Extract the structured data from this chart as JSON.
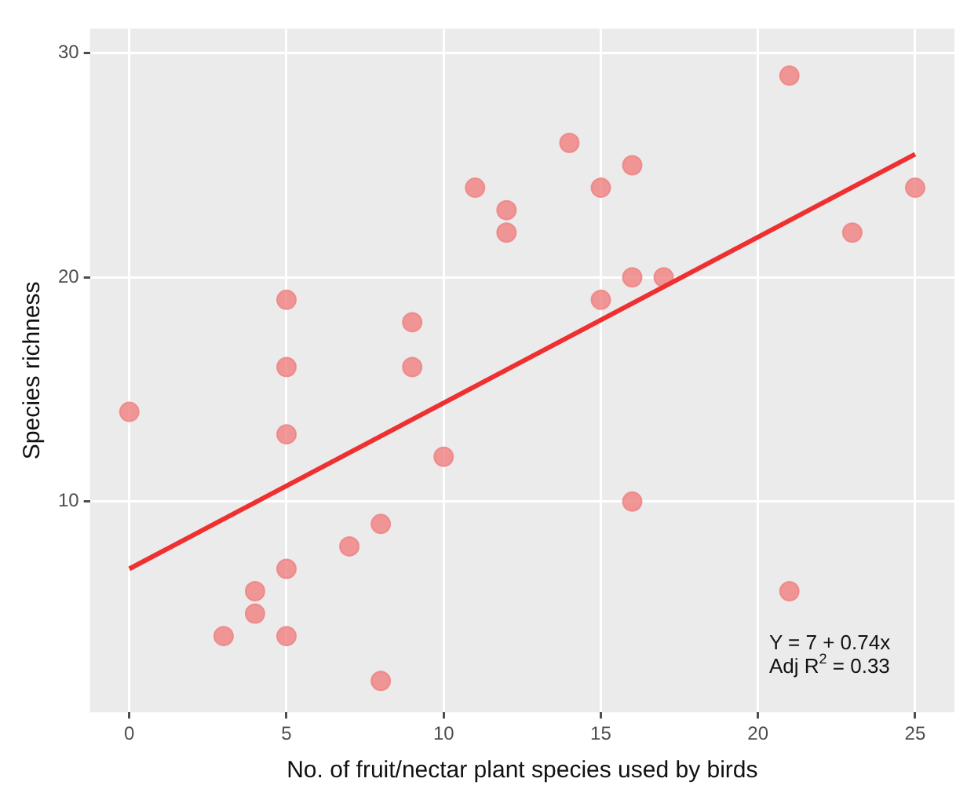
{
  "chart_data": {
    "type": "scatter",
    "xlabel": "No. of fruit/nectar plant species used by birds",
    "ylabel": "Species richness",
    "xlim": [
      -1.25,
      26.25
    ],
    "ylim": [
      0.6,
      31.1
    ],
    "xticks": [
      0,
      5,
      10,
      15,
      20,
      25
    ],
    "yticks": [
      10,
      20,
      30
    ],
    "grid": true,
    "series": [
      {
        "type": "scatter",
        "marker": "circle",
        "color": "#f08080",
        "x": [
          0,
          3,
          4,
          4,
          5,
          5,
          5,
          5,
          5,
          7,
          8,
          8,
          9,
          9,
          10,
          11,
          12,
          12,
          14,
          15,
          15,
          16,
          16,
          16,
          17,
          21,
          21,
          23,
          25
        ],
        "values": [
          14,
          4,
          6,
          5,
          4,
          7,
          13,
          16,
          19,
          8,
          9,
          2,
          18,
          16,
          12,
          24,
          23,
          22,
          26,
          24,
          19,
          25,
          20,
          10,
          20,
          29,
          6,
          22,
          24
        ]
      },
      {
        "type": "line",
        "marker": "none",
        "color": "#ee3030",
        "x": [
          0,
          25
        ],
        "values": [
          7,
          25.5
        ]
      }
    ],
    "annotations": [
      "Y = 7 + 0.74x",
      "Adj R$^{2}$ = 0.33"
    ]
  }
}
